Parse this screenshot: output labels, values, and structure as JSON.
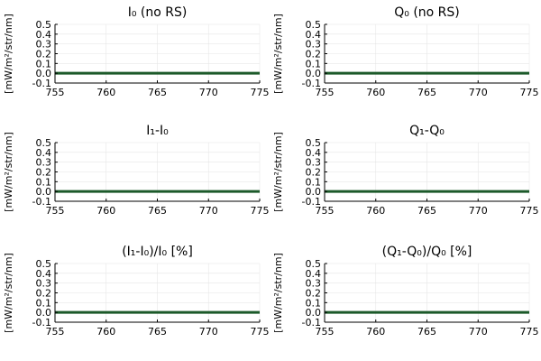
{
  "chart_data": [
    {
      "type": "line",
      "title": "I₀ (no RS)",
      "ylabel": "[mW/m²/str/nm]",
      "xlim": [
        755,
        775
      ],
      "ylim": [
        -0.1,
        0.5
      ],
      "xticks": [
        755,
        760,
        765,
        770,
        775
      ],
      "yticks": [
        -0.1,
        0.0,
        0.1,
        0.2,
        0.3,
        0.4,
        0.5
      ],
      "grid": true,
      "series": [
        {
          "x": [
            755,
            775
          ],
          "values": [
            0.0,
            0.0
          ],
          "color": "#1c5a2a"
        }
      ]
    },
    {
      "type": "line",
      "title": "Q₀ (no RS)",
      "ylabel": "[mW/m²/str/nm]",
      "xlim": [
        755,
        775
      ],
      "ylim": [
        -0.1,
        0.5
      ],
      "xticks": [
        755,
        760,
        765,
        770,
        775
      ],
      "yticks": [
        -0.1,
        0.0,
        0.1,
        0.2,
        0.3,
        0.4,
        0.5
      ],
      "grid": true,
      "series": [
        {
          "x": [
            755,
            775
          ],
          "values": [
            0.0,
            0.0
          ],
          "color": "#1c5a2a"
        }
      ]
    },
    {
      "type": "line",
      "title": "I₁-I₀",
      "ylabel": "[mW/m²/str/nm]",
      "xlim": [
        755,
        775
      ],
      "ylim": [
        -0.1,
        0.5
      ],
      "xticks": [
        755,
        760,
        765,
        770,
        775
      ],
      "yticks": [
        -0.1,
        0.0,
        0.1,
        0.2,
        0.3,
        0.4,
        0.5
      ],
      "grid": true,
      "series": [
        {
          "x": [
            755,
            775
          ],
          "values": [
            0.0,
            0.0
          ],
          "color": "#1c5a2a"
        }
      ]
    },
    {
      "type": "line",
      "title": "Q₁-Q₀",
      "ylabel": "[mW/m²/str/nm]",
      "xlim": [
        755,
        775
      ],
      "ylim": [
        -0.1,
        0.5
      ],
      "xticks": [
        755,
        760,
        765,
        770,
        775
      ],
      "yticks": [
        -0.1,
        0.0,
        0.1,
        0.2,
        0.3,
        0.4,
        0.5
      ],
      "grid": true,
      "series": [
        {
          "x": [
            755,
            775
          ],
          "values": [
            0.0,
            0.0
          ],
          "color": "#1c5a2a"
        }
      ]
    },
    {
      "type": "line",
      "title": "(I₁-I₀)/I₀ [%]",
      "ylabel": "[mW/m²/str/nm]",
      "xlim": [
        755,
        775
      ],
      "ylim": [
        -0.1,
        0.5
      ],
      "xticks": [
        755,
        760,
        765,
        770,
        775
      ],
      "yticks": [
        -0.1,
        0.0,
        0.1,
        0.2,
        0.3,
        0.4,
        0.5
      ],
      "grid": true,
      "series": [
        {
          "x": [
            755,
            775
          ],
          "values": [
            0.0,
            0.0
          ],
          "color": "#1c5a2a"
        }
      ]
    },
    {
      "type": "line",
      "title": "(Q₁-Q₀)/Q₀ [%]",
      "ylabel": "[mW/m²/str/nm]",
      "xlim": [
        755,
        775
      ],
      "ylim": [
        -0.1,
        0.5
      ],
      "xticks": [
        755,
        760,
        765,
        770,
        775
      ],
      "yticks": [
        -0.1,
        0.0,
        0.1,
        0.2,
        0.3,
        0.4,
        0.5
      ],
      "grid": true,
      "series": [
        {
          "x": [
            755,
            775
          ],
          "values": [
            0.0,
            0.0
          ],
          "color": "#1c5a2a"
        }
      ]
    }
  ]
}
